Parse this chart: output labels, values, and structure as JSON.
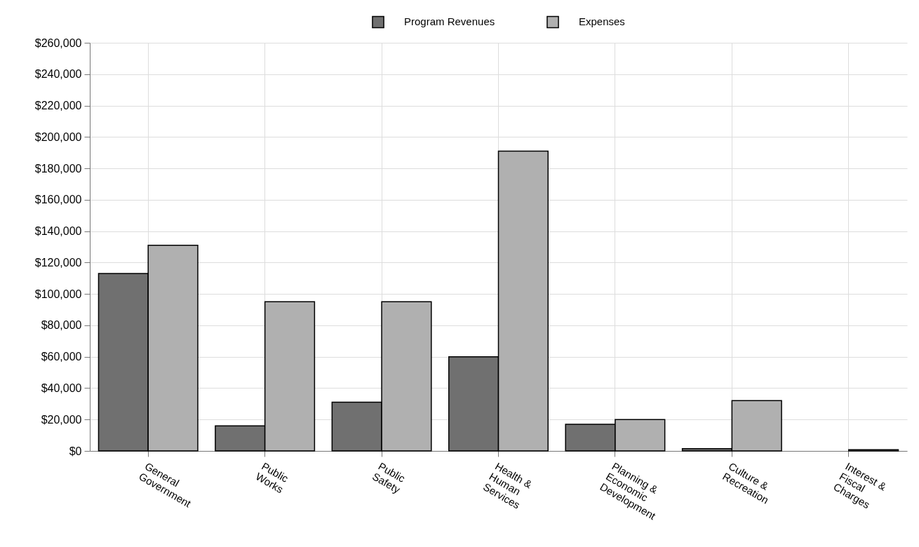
{
  "chart_data": {
    "type": "bar",
    "categories": [
      "General Government",
      "Public Works",
      "Public Safety",
      "Health & Human Services",
      "Planning & Economic Development",
      "Culture & Recreation",
      "Interest & Fiscal Charges"
    ],
    "series": [
      {
        "name": "Program Revenues",
        "color": "#707070",
        "values": [
          113000,
          16000,
          31000,
          60000,
          17000,
          1500,
          null
        ]
      },
      {
        "name": "Expenses",
        "color": "#b0b0b0",
        "values": [
          131000,
          95000,
          95000,
          191000,
          20000,
          32000,
          800
        ]
      }
    ],
    "ylim": [
      0,
      260000
    ],
    "yticks": [
      {
        "value": 0,
        "label": "$0"
      },
      {
        "value": 20000,
        "label": "$20,000"
      },
      {
        "value": 40000,
        "label": "$40,000"
      },
      {
        "value": 60000,
        "label": "$60,000"
      },
      {
        "value": 80000,
        "label": "$80,000"
      },
      {
        "value": 100000,
        "label": "$100,000"
      },
      {
        "value": 120000,
        "label": "$120,000"
      },
      {
        "value": 140000,
        "label": "$140,000"
      },
      {
        "value": 160000,
        "label": "$160,000"
      },
      {
        "value": 180000,
        "label": "$180,000"
      },
      {
        "value": 200000,
        "label": "$200,000"
      },
      {
        "value": 220000,
        "label": "$220,000"
      },
      {
        "value": 240000,
        "label": "$240,000"
      },
      {
        "value": 260000,
        "label": "$260,000"
      }
    ],
    "grid": true,
    "legend": "top"
  }
}
